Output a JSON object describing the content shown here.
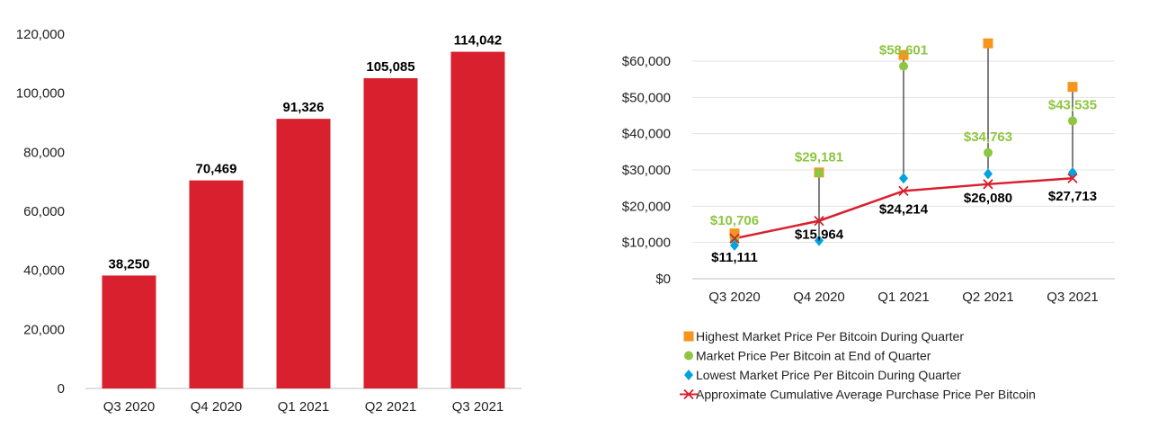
{
  "chart_data": [
    {
      "type": "bar",
      "title": "",
      "xlabel": "",
      "ylabel": "",
      "categories": [
        "Q3 2020",
        "Q4 2020",
        "Q1 2021",
        "Q2 2021",
        "Q3 2021"
      ],
      "values": [
        38250,
        70469,
        91326,
        105085,
        114042
      ],
      "value_labels": [
        "38,250",
        "70,469",
        "91,326",
        "105,085",
        "114,042"
      ],
      "ylim": [
        0,
        120000
      ],
      "yticks": [
        0,
        20000,
        40000,
        60000,
        80000,
        100000,
        120000
      ],
      "ytick_labels": [
        "0",
        "20,000",
        "40,000",
        "60,000",
        "80,000",
        "100,000",
        "120,000"
      ],
      "grid": false,
      "legend": "none",
      "bar_color": "#d9202e"
    },
    {
      "type": "line",
      "title": "",
      "xlabel": "",
      "ylabel": "",
      "categories": [
        "Q3 2020",
        "Q4 2020",
        "Q1 2021",
        "Q2 2021",
        "Q3 2021"
      ],
      "ylim": [
        0,
        60000
      ],
      "yticks": [
        0,
        10000,
        20000,
        30000,
        40000,
        50000,
        60000
      ],
      "ytick_labels": [
        "$0",
        "$10,000",
        "$20,000",
        "$30,000",
        "$40,000",
        "$50,000",
        "$60,000"
      ],
      "grid": true,
      "legend": "bottom",
      "series": [
        {
          "name": "Highest Market Price Per Bitcoin During Quarter",
          "marker": "square",
          "color": "#f7941d",
          "values": [
            12500,
            29300,
            61700,
            64900,
            52900
          ]
        },
        {
          "name": "Market Price Per Bitcoin at End of Quarter",
          "marker": "circle",
          "color": "#8dc63f",
          "values": [
            10706,
            29181,
            58601,
            34763,
            43535
          ],
          "value_labels": [
            "$10,706",
            "$29,181",
            "$58,601",
            "$34,763",
            "$43,535"
          ]
        },
        {
          "name": "Lowest Market Price Per Bitcoin During Quarter",
          "marker": "diamond",
          "color": "#00a3e0",
          "values": [
            9200,
            10500,
            27700,
            28900,
            29300
          ]
        },
        {
          "name": "Approximate Cumulative Average Purchase Price Per Bitcoin",
          "marker": "x",
          "color": "#d9202e",
          "values": [
            11111,
            15964,
            24214,
            26080,
            27713
          ],
          "value_labels": [
            "$11,111",
            "$15,964",
            "$24,214",
            "$26,080",
            "$27,713"
          ]
        }
      ]
    }
  ]
}
